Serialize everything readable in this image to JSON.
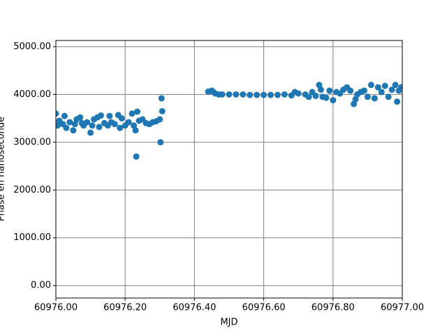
{
  "chart_data": {
    "type": "scatter",
    "xlabel": "MJD",
    "ylabel": "Phase en nanoseconde",
    "xlim": [
      60976.0,
      60977.0
    ],
    "ylim": [
      -260,
      5130
    ],
    "xticks": [
      {
        "value": 60976.0,
        "label": "60976.00"
      },
      {
        "value": 60976.2,
        "label": "60976.20"
      },
      {
        "value": 60976.4,
        "label": "60976.40"
      },
      {
        "value": 60976.6,
        "label": "60976.60"
      },
      {
        "value": 60976.8,
        "label": "60976.80"
      },
      {
        "value": 60977.0,
        "label": "60977.00"
      }
    ],
    "yticks": [
      {
        "value": 0,
        "label": "0.00"
      },
      {
        "value": 1000,
        "label": "1000.00"
      },
      {
        "value": 2000,
        "label": "2000.00"
      },
      {
        "value": 3000,
        "label": "3000.00"
      },
      {
        "value": 4000,
        "label": "4000.00"
      },
      {
        "value": 5000,
        "label": "5000.00"
      }
    ],
    "grid": true,
    "color": "#1f77b4",
    "x": [
      60976.0,
      60976.005,
      60976.01,
      60976.02,
      60976.025,
      60976.03,
      60976.04,
      60976.05,
      60976.055,
      60976.06,
      60976.07,
      60976.075,
      60976.08,
      60976.09,
      60976.1,
      60976.105,
      60976.11,
      60976.12,
      60976.125,
      60976.13,
      60976.14,
      60976.15,
      60976.155,
      60976.16,
      60976.17,
      60976.18,
      60976.185,
      60976.19,
      60976.2,
      60976.21,
      60976.22,
      60976.225,
      60976.23,
      60976.232,
      60976.235,
      60976.24,
      60976.25,
      60976.26,
      60976.27,
      60976.28,
      60976.29,
      60976.3,
      60976.302,
      60976.305,
      60976.307,
      60976.44,
      60976.45,
      60976.455,
      60976.46,
      60976.47,
      60976.48,
      60976.5,
      60976.52,
      60976.54,
      60976.56,
      60976.58,
      60976.6,
      60976.62,
      60976.64,
      60976.66,
      60976.68,
      60976.69,
      60976.7,
      60976.72,
      60976.73,
      60976.74,
      60976.75,
      60976.76,
      60976.765,
      60976.77,
      60976.78,
      60976.79,
      60976.8,
      60976.81,
      60976.82,
      60976.83,
      60976.84,
      60976.85,
      60976.86,
      60976.865,
      60976.87,
      60976.88,
      60976.89,
      60976.9,
      60976.91,
      60976.92,
      60976.93,
      60976.94,
      60976.95,
      60976.96,
      60976.97,
      60976.98,
      60976.985,
      60976.99,
      60976.997
    ],
    "values": [
      3600,
      3350,
      3450,
      3380,
      3550,
      3300,
      3420,
      3250,
      3380,
      3480,
      3520,
      3400,
      3350,
      3420,
      3200,
      3350,
      3480,
      3520,
      3320,
      3560,
      3400,
      3350,
      3550,
      3420,
      3380,
      3570,
      3300,
      3500,
      3350,
      3420,
      3600,
      3350,
      3250,
      2700,
      3640,
      3450,
      3480,
      3400,
      3380,
      3420,
      3440,
      3480,
      3000,
      3920,
      3650,
      4060,
      4080,
      4050,
      4020,
      4000,
      4000,
      4000,
      4000,
      4000,
      3990,
      3990,
      3990,
      3990,
      3990,
      4000,
      3980,
      4050,
      4020,
      4000,
      3950,
      4050,
      3970,
      4200,
      4100,
      3950,
      3930,
      4080,
      3880,
      4050,
      4020,
      4100,
      4150,
      4080,
      3800,
      3900,
      4000,
      4050,
      4080,
      3950,
      4200,
      3920,
      4150,
      4050,
      4180,
      3950,
      4100,
      4200,
      3850,
      4080,
      4150
    ]
  }
}
